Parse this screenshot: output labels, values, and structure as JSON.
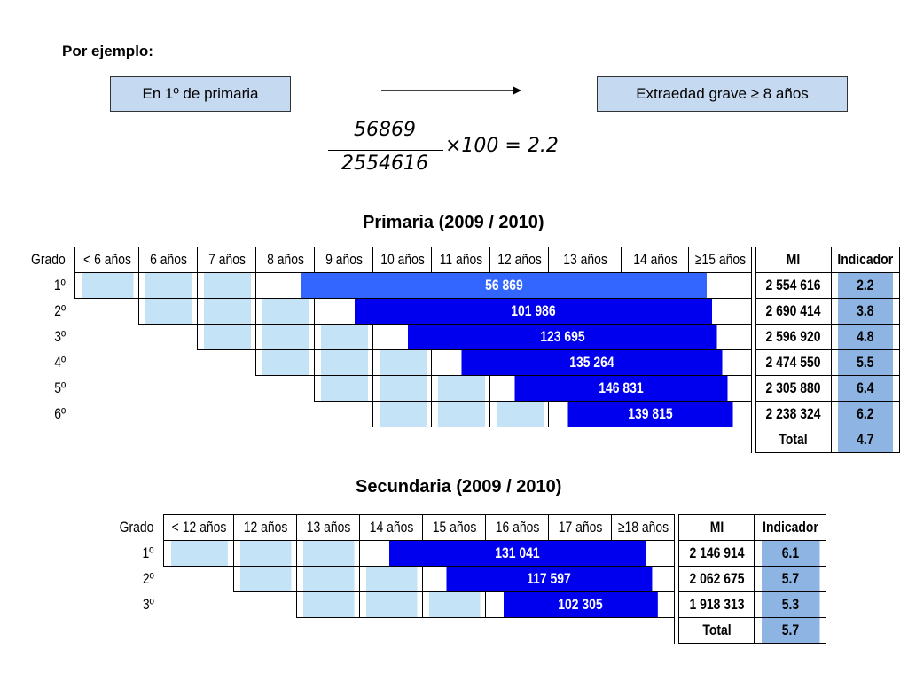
{
  "intro": {
    "label": "Por ejemplo:"
  },
  "example": {
    "left_box": "En 1º de primaria",
    "right_box": "Extraedad grave ≥ 8 años",
    "numerator": "56869",
    "denominator": "2554616",
    "rest": "×100 = 2.2"
  },
  "primaria": {
    "title": "Primaria (2009 / 2010)",
    "grado_label": "Grado",
    "ages": [
      "< 6 años",
      "6 años",
      "7 años",
      "8 años",
      "9 años",
      "10 años",
      "11 años",
      "12 años",
      "13 años",
      "14 años",
      "≥15 años"
    ],
    "mi_label": "MI",
    "indicador_label": "Indicador",
    "rows": [
      {
        "grado": "1º",
        "value": "56 869",
        "mi": "2 554 616",
        "ind": "2.2"
      },
      {
        "grado": "2º",
        "value": "101 986",
        "mi": "2 690 414",
        "ind": "3.8"
      },
      {
        "grado": "3º",
        "value": "123 695",
        "mi": "2 596 920",
        "ind": "4.8"
      },
      {
        "grado": "4º",
        "value": "135 264",
        "mi": "2 474 550",
        "ind": "5.5"
      },
      {
        "grado": "5º",
        "value": "146 831",
        "mi": "2 305 880",
        "ind": "6.4"
      },
      {
        "grado": "6º",
        "value": "139 815",
        "mi": "2 238 324",
        "ind": "6.2"
      }
    ],
    "total_label": "Total",
    "total_ind": "4.7"
  },
  "secundaria": {
    "title": "Secundaria (2009 / 2010)",
    "grado_label": "Grado",
    "ages": [
      "< 12 años",
      "12 años",
      "13 años",
      "14 años",
      "15 años",
      "16 años",
      "17 años",
      "≥18 años"
    ],
    "mi_label": "MI",
    "indicador_label": "Indicador",
    "rows": [
      {
        "grado": "1º",
        "value": "131 041",
        "mi": "2 146 914",
        "ind": "6.1"
      },
      {
        "grado": "2º",
        "value": "117 597",
        "mi": "2 062 675",
        "ind": "5.7"
      },
      {
        "grado": "3º",
        "value": "102 305",
        "mi": "1 918 313",
        "ind": "5.3"
      }
    ],
    "total_label": "Total",
    "total_ind": "5.7"
  },
  "colors": {
    "light_blue": "#c5e3f6",
    "dark_blue": "#0000ee",
    "medium_blue": "#3366ff",
    "indicator_blue": "#8db4e2"
  }
}
